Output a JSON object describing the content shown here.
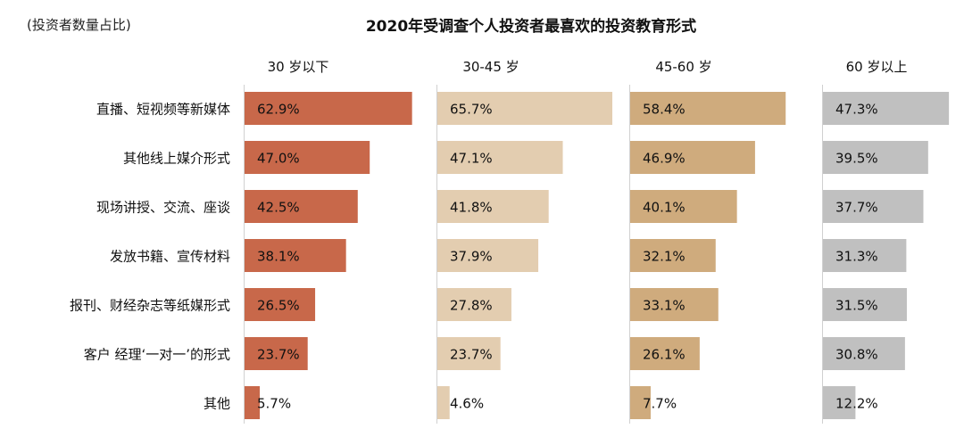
{
  "chart_data": {
    "type": "bar",
    "title": "2020年受调查个人投资者最喜欢的投资教育形式",
    "unit_label": "(投资者数量占比)",
    "categories": [
      "直播、短视频等新媒体",
      "其他线上媒介形式",
      "现场讲授、交流、座谈",
      "发放书籍、宣传材料",
      "报刊、财经杂志等纸媒形式",
      "客户 经理‘一对一’的形式",
      "其他"
    ],
    "series": [
      {
        "name": "30 岁以下",
        "color": "#c8684a",
        "values": [
          62.9,
          47.0,
          42.5,
          38.1,
          26.5,
          23.7,
          5.7
        ],
        "labels": [
          "62.9%",
          "47.0%",
          "42.5%",
          "38.1%",
          "26.5%",
          "23.7%",
          "5.7%"
        ]
      },
      {
        "name": "30-45 岁",
        "color": "#e3cdb0",
        "values": [
          65.7,
          47.1,
          41.8,
          37.9,
          27.8,
          23.7,
          4.6
        ],
        "labels": [
          "65.7%",
          "47.1%",
          "41.8%",
          "37.9%",
          "27.8%",
          "23.7%",
          "4.6%"
        ]
      },
      {
        "name": "45-60 岁",
        "color": "#cfab7d",
        "values": [
          58.4,
          46.9,
          40.1,
          32.1,
          33.1,
          26.1,
          7.7
        ],
        "labels": [
          "58.4%",
          "46.9%",
          "40.1%",
          "32.1%",
          "33.1%",
          "26.1%",
          "7.7%"
        ]
      },
      {
        "name": "60 岁以上",
        "color": "#c0c0c0",
        "values": [
          47.3,
          39.5,
          37.7,
          31.3,
          31.5,
          30.8,
          12.2
        ],
        "labels": [
          "47.3%",
          "39.5%",
          "37.7%",
          "31.3%",
          "31.5%",
          "30.8%",
          "12.2%"
        ]
      }
    ],
    "xlim": [
      0,
      70
    ],
    "grid": false,
    "legend": "panel headers"
  }
}
